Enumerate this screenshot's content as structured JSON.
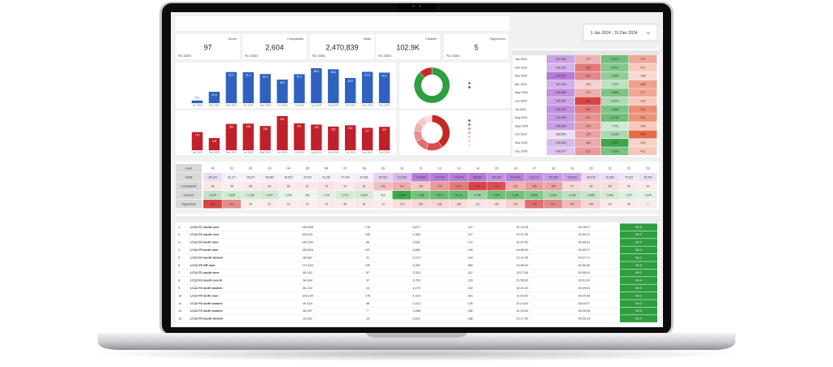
{
  "date_range": "1 Jan 2024 - 31 Dec 2024",
  "kpis": [
    {
      "label": "Score",
      "value": "97",
      "note": "No data"
    },
    {
      "label": "Complaints",
      "value": "2,604",
      "note": "No data"
    },
    {
      "label": "Visits",
      "value": "2,470,839",
      "note": "No data"
    },
    {
      "label": "Cleaner",
      "value": "102.9K",
      "note": "No data"
    },
    {
      "label": "Tagversion",
      "value": "5",
      "note": "No data"
    }
  ],
  "chart_data": [
    {
      "type": "bar",
      "color": "#2f62c0",
      "categories": [
        "Jan 2024",
        "Feb 2024",
        "Mar 2024",
        "Apr 2024",
        "May 2024",
        "Jun 2024",
        "Jul 2024",
        "Aug 2024",
        "Sep 2024",
        "Oct 2024",
        "Nov 2024",
        "Dec 2024"
      ],
      "values": [
        5.2,
        22.4,
        61.3,
        61.1,
        57.4,
        46.5,
        57.1,
        68.9,
        66.8,
        49.6,
        61.8,
        60.2
      ]
    },
    {
      "type": "bar",
      "color": "#c0202a",
      "categories": [
        "Jan 2024",
        "Feb 2024",
        "Mar 2024",
        "Apr 2024",
        "May 2024",
        "Jun 2024",
        "Jul 2024",
        "Aug 2024",
        "Sep 2024",
        "Oct 2024",
        "Nov 2024",
        "Dec 2024"
      ],
      "values": [
        176,
        118,
        255,
        258,
        235,
        331,
        261,
        249,
        230,
        242,
        217,
        227
      ]
    },
    {
      "type": "pie",
      "colors": [
        "#2e9e3e",
        "#c62828"
      ],
      "values": [
        88,
        12
      ]
    },
    {
      "type": "pie",
      "colors": [
        "#c62828",
        "#d84a4a",
        "#e07070",
        "#e89090",
        "#efb0b0",
        "#f4c8c8",
        "#f9dede"
      ],
      "values": [
        40,
        15,
        12,
        10,
        8,
        8,
        7
      ]
    }
  ],
  "month_table": {
    "rows": [
      [
        "Jan 2024",
        "207,550",
        "173",
        "8,673",
        "474"
      ],
      [
        "Feb 2024",
        "195,302",
        "263",
        "8,491",
        "417"
      ],
      [
        "Mar 2024",
        "235,427",
        "241",
        "8,364",
        "390"
      ],
      [
        "Apr 2024",
        "197,418",
        "126",
        "7,921",
        "489"
      ],
      [
        "May 2024",
        "218,986",
        "179",
        "8,568",
        "477"
      ],
      [
        "Jun 2024",
        "205,064",
        "344",
        "8,074",
        "418"
      ],
      [
        "Jul 2024",
        "220,397",
        "257",
        "8,568",
        "521"
      ],
      [
        "Aug 2024",
        "212,098",
        "221",
        "8,716",
        "511"
      ],
      [
        "Sept 2024",
        "209,653",
        "209",
        "7,741",
        "420"
      ],
      [
        "Oct 2024",
        "165,509",
        "198",
        "8,108",
        "580"
      ],
      [
        "Nov 2024",
        "190,826",
        "184",
        "9,197",
        "404"
      ],
      [
        "Dec 2024",
        "184,577",
        "211",
        "8,599",
        "421"
      ]
    ]
  },
  "hour_table": {
    "row_labels": [
      "Hour",
      "Visits",
      "Complaints",
      "Cleaner",
      "Tagversion"
    ],
    "hours": [
      "00",
      "01",
      "02",
      "03",
      "04",
      "05",
      "06",
      "07",
      "08",
      "09",
      "10",
      "11",
      "12",
      "13",
      "14",
      "15",
      "16",
      "17",
      "18",
      "19",
      "20",
      "21",
      "22",
      "23"
    ],
    "rows": [
      [
        "84,276",
        "51,127",
        "46,037",
        "48,983",
        "46,524",
        "37,519",
        "41,230",
        "47,403",
        "51,081",
        "95,783",
        "122,302",
        "178,484",
        "179,432",
        "178,448",
        "180,921",
        "160,224",
        "174,640",
        "162,222",
        "152,336",
        "145,810",
        "88,045",
        "81,355",
        "70,192",
        "76,418"
      ],
      [
        "64",
        "38",
        "58",
        "62",
        "56",
        "61",
        "75",
        "51",
        "81",
        "143",
        "170",
        "126",
        "191",
        "229",
        "284",
        "273",
        "161",
        "189",
        "180",
        "97",
        "85",
        "89",
        "59",
        "44"
      ],
      [
        "3,914",
        "2,836",
        "2,738",
        "3,007",
        "1,029",
        "300",
        "1,733",
        "2,714",
        "2,824",
        "412",
        "9,508",
        "7,348",
        "7,877",
        "8,010",
        "5,750",
        "7,670",
        "7,492",
        "6,808",
        "5,309",
        "4,108",
        "3,686",
        "2,899",
        "1,977",
        "1,643"
      ],
      [
        "883",
        "613",
        "42",
        "51",
        "18",
        "21",
        "76",
        "50",
        "81",
        "23",
        "174",
        "220",
        "232",
        "189",
        "111",
        "135",
        "270",
        "725",
        "621",
        "402",
        "245",
        "63",
        "39",
        "7"
      ]
    ]
  },
  "site_table": {
    "rows": [
      [
        "1.",
        "LC12 F1 south men",
        "149,908",
        "176",
        "3,877",
        "137",
        "21:14:15",
        "00:18:37",
        "99.8"
      ],
      [
        "2.",
        "LC12 F3 south men",
        "105,621",
        "109",
        "2,365",
        "137",
        "22:37:45",
        "00:40:21",
        "99.3"
      ],
      [
        "3.",
        "LC12 F4 north men",
        "130,534",
        "96",
        "2,631",
        "172",
        "21:37:00",
        "00:35:41",
        "99.5"
      ],
      [
        "4.",
        "LC12 F5 north men",
        "130,816",
        "197",
        "4,882",
        "139",
        "19:59:00",
        "00:35:27",
        "99.4"
      ],
      [
        "5.",
        "LC12 F4 south women",
        "38,667",
        "21",
        "2,973",
        "134",
        "21:11:45",
        "00:27:17",
        "99.2"
      ],
      [
        "6.",
        "LC12 F5 GR men",
        "171,634",
        "132",
        "3,391",
        "369",
        "22:05:00",
        "00:35:35",
        "99.6"
      ],
      [
        "7.",
        "LC12 F2 south men",
        "45,010",
        "87",
        "3,324",
        "112",
        "22:17:45",
        "00:35:51",
        "99.1"
      ],
      [
        "8.",
        "LC12 F3 south men B",
        "34,994",
        "37",
        "3,750",
        "123",
        "21:55:45",
        "00:31:40",
        "99.4"
      ],
      [
        "9.",
        "LC12 F4 north women",
        "30,242",
        "13",
        "4,079",
        "132",
        "20:01:00",
        "00:29:01",
        "99.3"
      ],
      [
        "10.",
        "LC12 F5 north men",
        "128,199",
        "175",
        "4,319",
        "161",
        "21:51:00",
        "00:20:36",
        "99.2"
      ],
      [
        "11.",
        "LC12 F3 north women",
        "99,424",
        "48",
        "2,410",
        "176",
        "21:14:00",
        "00:15:37",
        "99.0"
      ],
      [
        "12.",
        "LC12 F2 north women",
        "35,297",
        "7",
        "1,288",
        "136",
        "21:14:30",
        "00:25:35",
        "99.5"
      ],
      [
        "13.",
        "LC12 F5 south women",
        "19,622",
        "16",
        "2,801",
        "138",
        "22:17:30",
        "00:26:19",
        "99.4"
      ]
    ]
  }
}
